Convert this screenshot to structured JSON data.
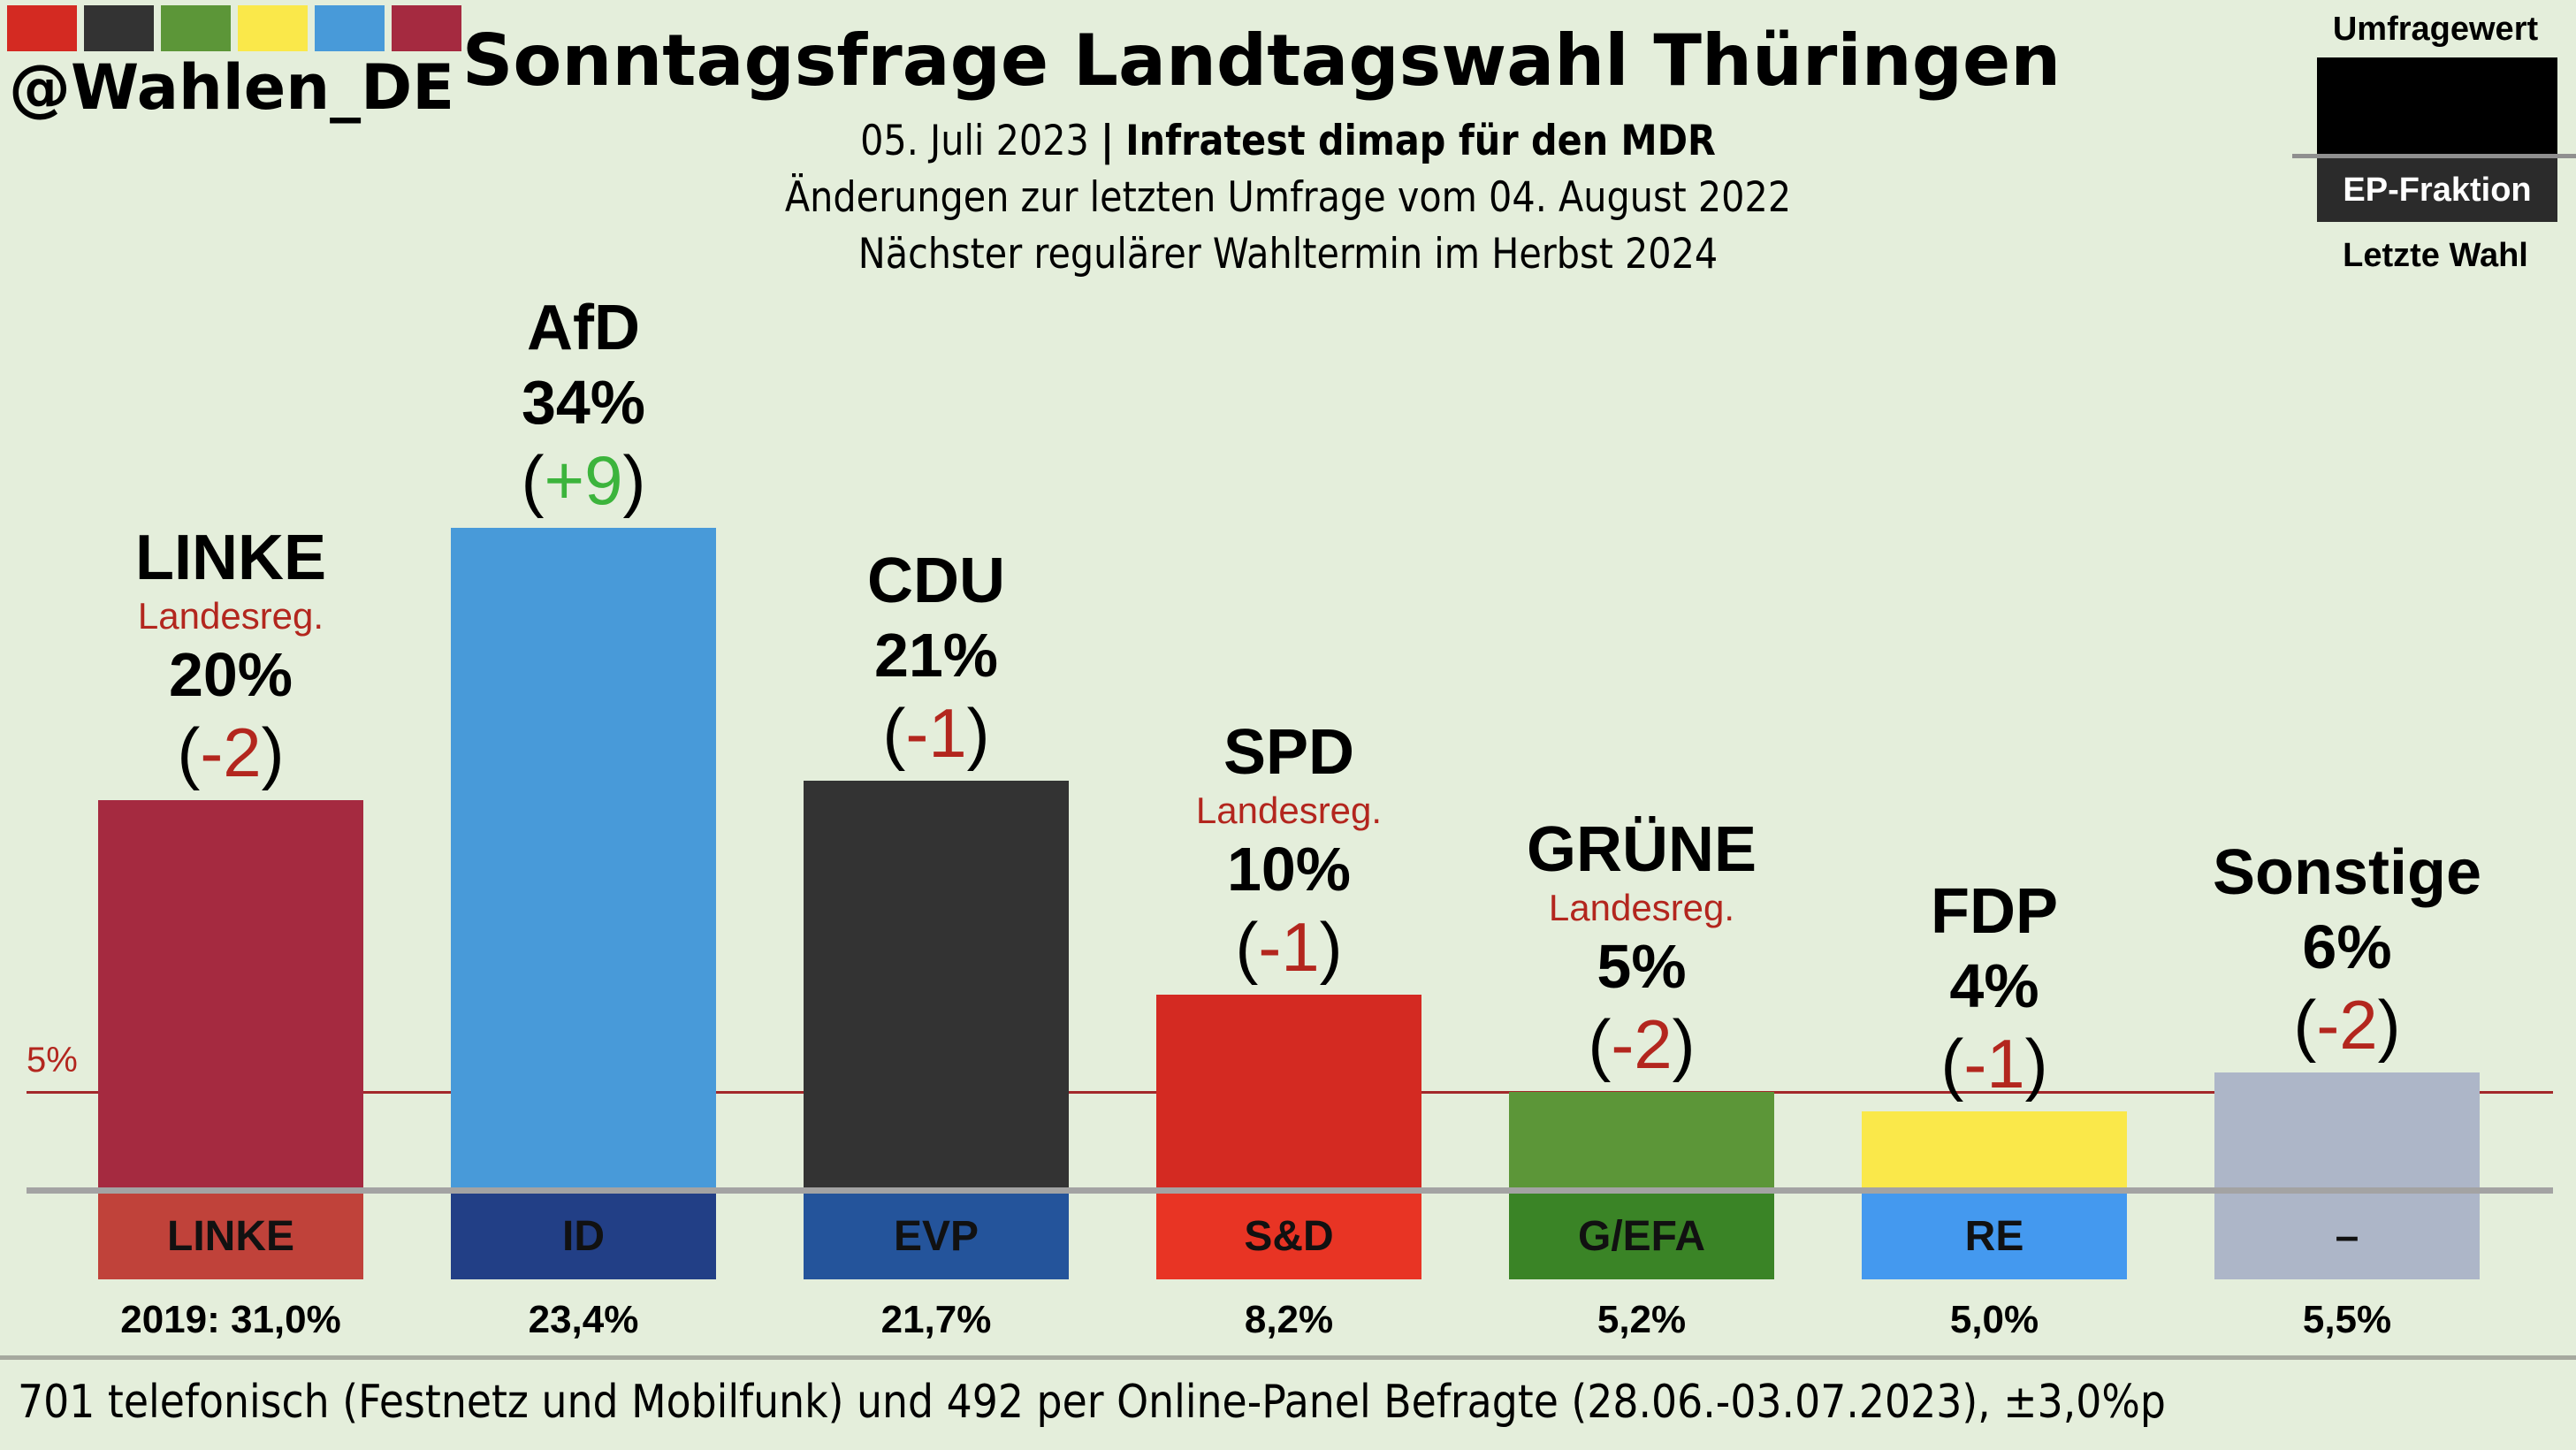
{
  "brand": {
    "handle": "@Wahlen_DE",
    "logo_colors": [
      "#d42a22",
      "#333333",
      "#5c9638",
      "#fae84a",
      "#489ad9",
      "#a52a40"
    ]
  },
  "header": {
    "title": "Sonntagsfrage Landtagswahl Thüringen",
    "date": "05. Juli 2023",
    "separator": "|",
    "institute": "Infratest dimap für den MDR",
    "changes_note": "Änderungen zur letzten Umfrage vom 04. August 2022",
    "next_election": "Nächster regulärer Wahltermin im Herbst 2024"
  },
  "legend": {
    "top_label": "Umfragewert",
    "middle_label": "EP-Fraktion",
    "bottom_label": "Letzte Wahl"
  },
  "chart_data": {
    "type": "bar",
    "title": "Sonntagsfrage Landtagswahl Thüringen",
    "xlabel": "",
    "ylabel": "",
    "unit": "%",
    "threshold": {
      "value": 5,
      "label": "5%"
    },
    "categories": [
      "LINKE",
      "AfD",
      "CDU",
      "SPD",
      "GRÜNE",
      "FDP",
      "Sonstige"
    ],
    "values": [
      20,
      34,
      21,
      10,
      5,
      4,
      6
    ],
    "changes": [
      -2,
      9,
      -1,
      -1,
      -2,
      -1,
      -2
    ],
    "bars": [
      {
        "name": "LINKE",
        "gov": "Landesreg.",
        "value": 20,
        "value_label": "20%",
        "change_label": "-2",
        "change_sign": "neg",
        "color": "#a52a40",
        "ep_group": "LINKE",
        "ep_color": "#c0423a",
        "last_label": "2019: 31,0%"
      },
      {
        "name": "AfD",
        "gov": "",
        "value": 34,
        "value_label": "34%",
        "change_label": "+9",
        "change_sign": "pos",
        "color": "#489ad9",
        "ep_group": "ID",
        "ep_color": "#223f86",
        "last_label": "23,4%"
      },
      {
        "name": "CDU",
        "gov": "",
        "value": 21,
        "value_label": "21%",
        "change_label": "-1",
        "change_sign": "neg",
        "color": "#333333",
        "ep_group": "EVP",
        "ep_color": "#24549b",
        "last_label": "21,7%"
      },
      {
        "name": "SPD",
        "gov": "Landesreg.",
        "value": 10,
        "value_label": "10%",
        "change_label": "-1",
        "change_sign": "neg",
        "color": "#d42a22",
        "ep_group": "S&D",
        "ep_color": "#e83424",
        "last_label": "8,2%"
      },
      {
        "name": "GRÜNE",
        "gov": "Landesreg.",
        "value": 5,
        "value_label": "5%",
        "change_label": "-2",
        "change_sign": "neg",
        "color": "#5c9638",
        "ep_group": "G/EFA",
        "ep_color": "#3a8426",
        "last_label": "5,2%"
      },
      {
        "name": "FDP",
        "gov": "",
        "value": 4,
        "value_label": "4%",
        "change_label": "-1",
        "change_sign": "neg",
        "color": "#fae84a",
        "ep_group": "RE",
        "ep_color": "#4499ef",
        "last_label": "5,0%"
      },
      {
        "name": "Sonstige",
        "gov": "",
        "value": 6,
        "value_label": "6%",
        "change_label": "-2",
        "change_sign": "neg",
        "color": "#adb6c8",
        "ep_group": "–",
        "ep_color": "#adb6c8",
        "last_label": "5,5%"
      }
    ],
    "ylim": [
      0,
      36
    ],
    "grid": false,
    "legend_position": "top-right"
  },
  "footer": {
    "note": "701 telefonisch (Festnetz und Mobilfunk) und 492 per Online-Panel Befragte (28.06.-03.07.2023), ±3,0%p"
  }
}
